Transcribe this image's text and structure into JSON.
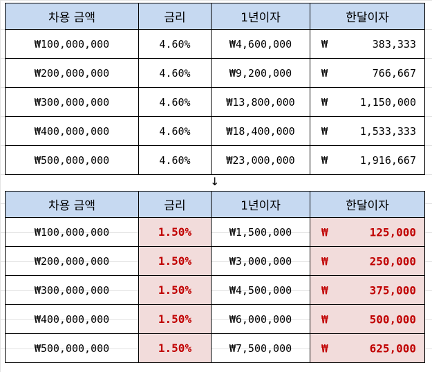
{
  "headers": [
    "차용 금액",
    "금리",
    "1년이자",
    "한달이자"
  ],
  "currency_symbol": "₩",
  "arrow": "↓",
  "table_before": [
    {
      "principal": "₩100,000,000",
      "rate": "4.60%",
      "yearly": "₩4,600,000",
      "monthly": "383,333"
    },
    {
      "principal": "₩200,000,000",
      "rate": "4.60%",
      "yearly": "₩9,200,000",
      "monthly": "766,667"
    },
    {
      "principal": "₩300,000,000",
      "rate": "4.60%",
      "yearly": "₩13,800,000",
      "monthly": "1,150,000"
    },
    {
      "principal": "₩400,000,000",
      "rate": "4.60%",
      "yearly": "₩18,400,000",
      "monthly": "1,533,333"
    },
    {
      "principal": "₩500,000,000",
      "rate": "4.60%",
      "yearly": "₩23,000,000",
      "monthly": "1,916,667"
    }
  ],
  "table_after": [
    {
      "principal": "₩100,000,000",
      "rate": "1.50%",
      "yearly": "₩1,500,000",
      "monthly": "125,000"
    },
    {
      "principal": "₩200,000,000",
      "rate": "1.50%",
      "yearly": "₩3,000,000",
      "monthly": "250,000"
    },
    {
      "principal": "₩300,000,000",
      "rate": "1.50%",
      "yearly": "₩4,500,000",
      "monthly": "375,000"
    },
    {
      "principal": "₩400,000,000",
      "rate": "1.50%",
      "yearly": "₩6,000,000",
      "monthly": "500,000"
    },
    {
      "principal": "₩500,000,000",
      "rate": "1.50%",
      "yearly": "₩7,500,000",
      "monthly": "625,000"
    }
  ],
  "colors": {
    "header_bg": "#c6d9f1",
    "highlight_bg": "#f2dcdb",
    "highlight_text": "#c00000"
  }
}
